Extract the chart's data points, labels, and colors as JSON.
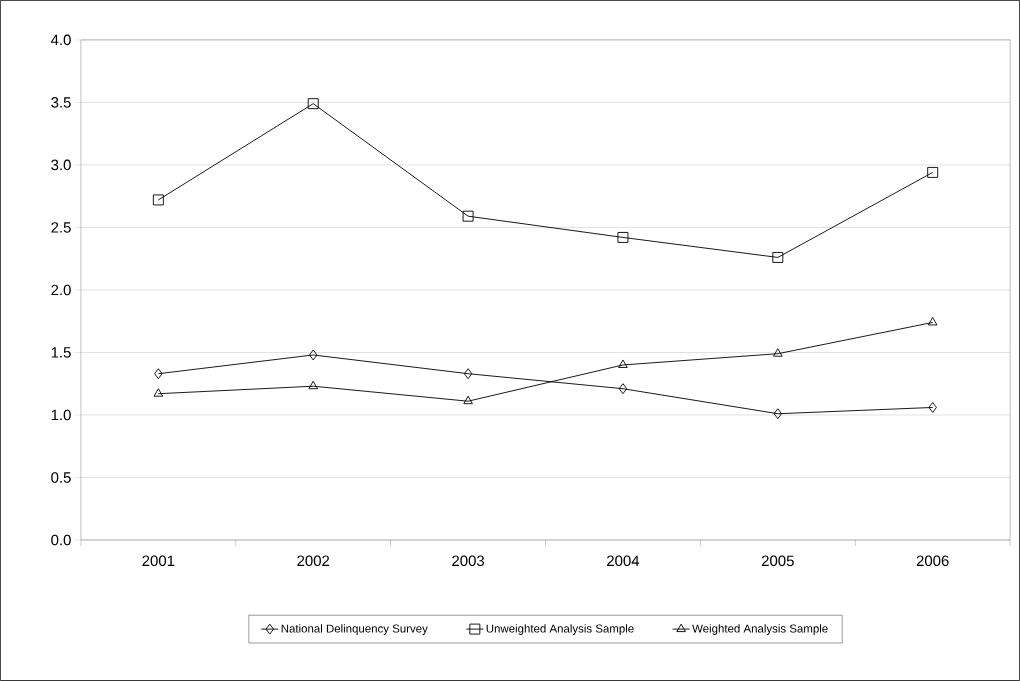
{
  "chart_data": {
    "type": "line",
    "categories": [
      "2001",
      "2002",
      "2003",
      "2004",
      "2005",
      "2006"
    ],
    "series": [
      {
        "name": "National Delinquency Survey",
        "color": "#000000",
        "marker": "diamond",
        "values": [
          1.33,
          1.48,
          1.33,
          1.21,
          1.01,
          1.06
        ]
      },
      {
        "name": "Unweighted Analysis Sample",
        "color": "#000000",
        "marker": "square",
        "values": [
          2.72,
          3.49,
          2.59,
          2.42,
          2.26,
          2.94
        ]
      },
      {
        "name": "Weighted Analysis Sample",
        "color": "#000000",
        "marker": "triangle",
        "values": [
          1.17,
          1.23,
          1.11,
          1.4,
          1.49,
          1.74
        ]
      }
    ],
    "ylim": [
      0,
      4
    ],
    "yticks": [
      {
        "value": 0,
        "label": "0.0"
      },
      {
        "value": 0.5,
        "label": "0.5"
      },
      {
        "value": 1,
        "label": "1.0"
      },
      {
        "value": 1.5,
        "label": "1.5"
      },
      {
        "value": 2,
        "label": "2.0"
      },
      {
        "value": 2.5,
        "label": "2.5"
      },
      {
        "value": 3,
        "label": "3.0"
      },
      {
        "value": 3.5,
        "label": "3.5"
      },
      {
        "value": 4,
        "label": "4.0"
      }
    ],
    "grid": "y",
    "legend": "bottom",
    "line_style": "solid"
  }
}
